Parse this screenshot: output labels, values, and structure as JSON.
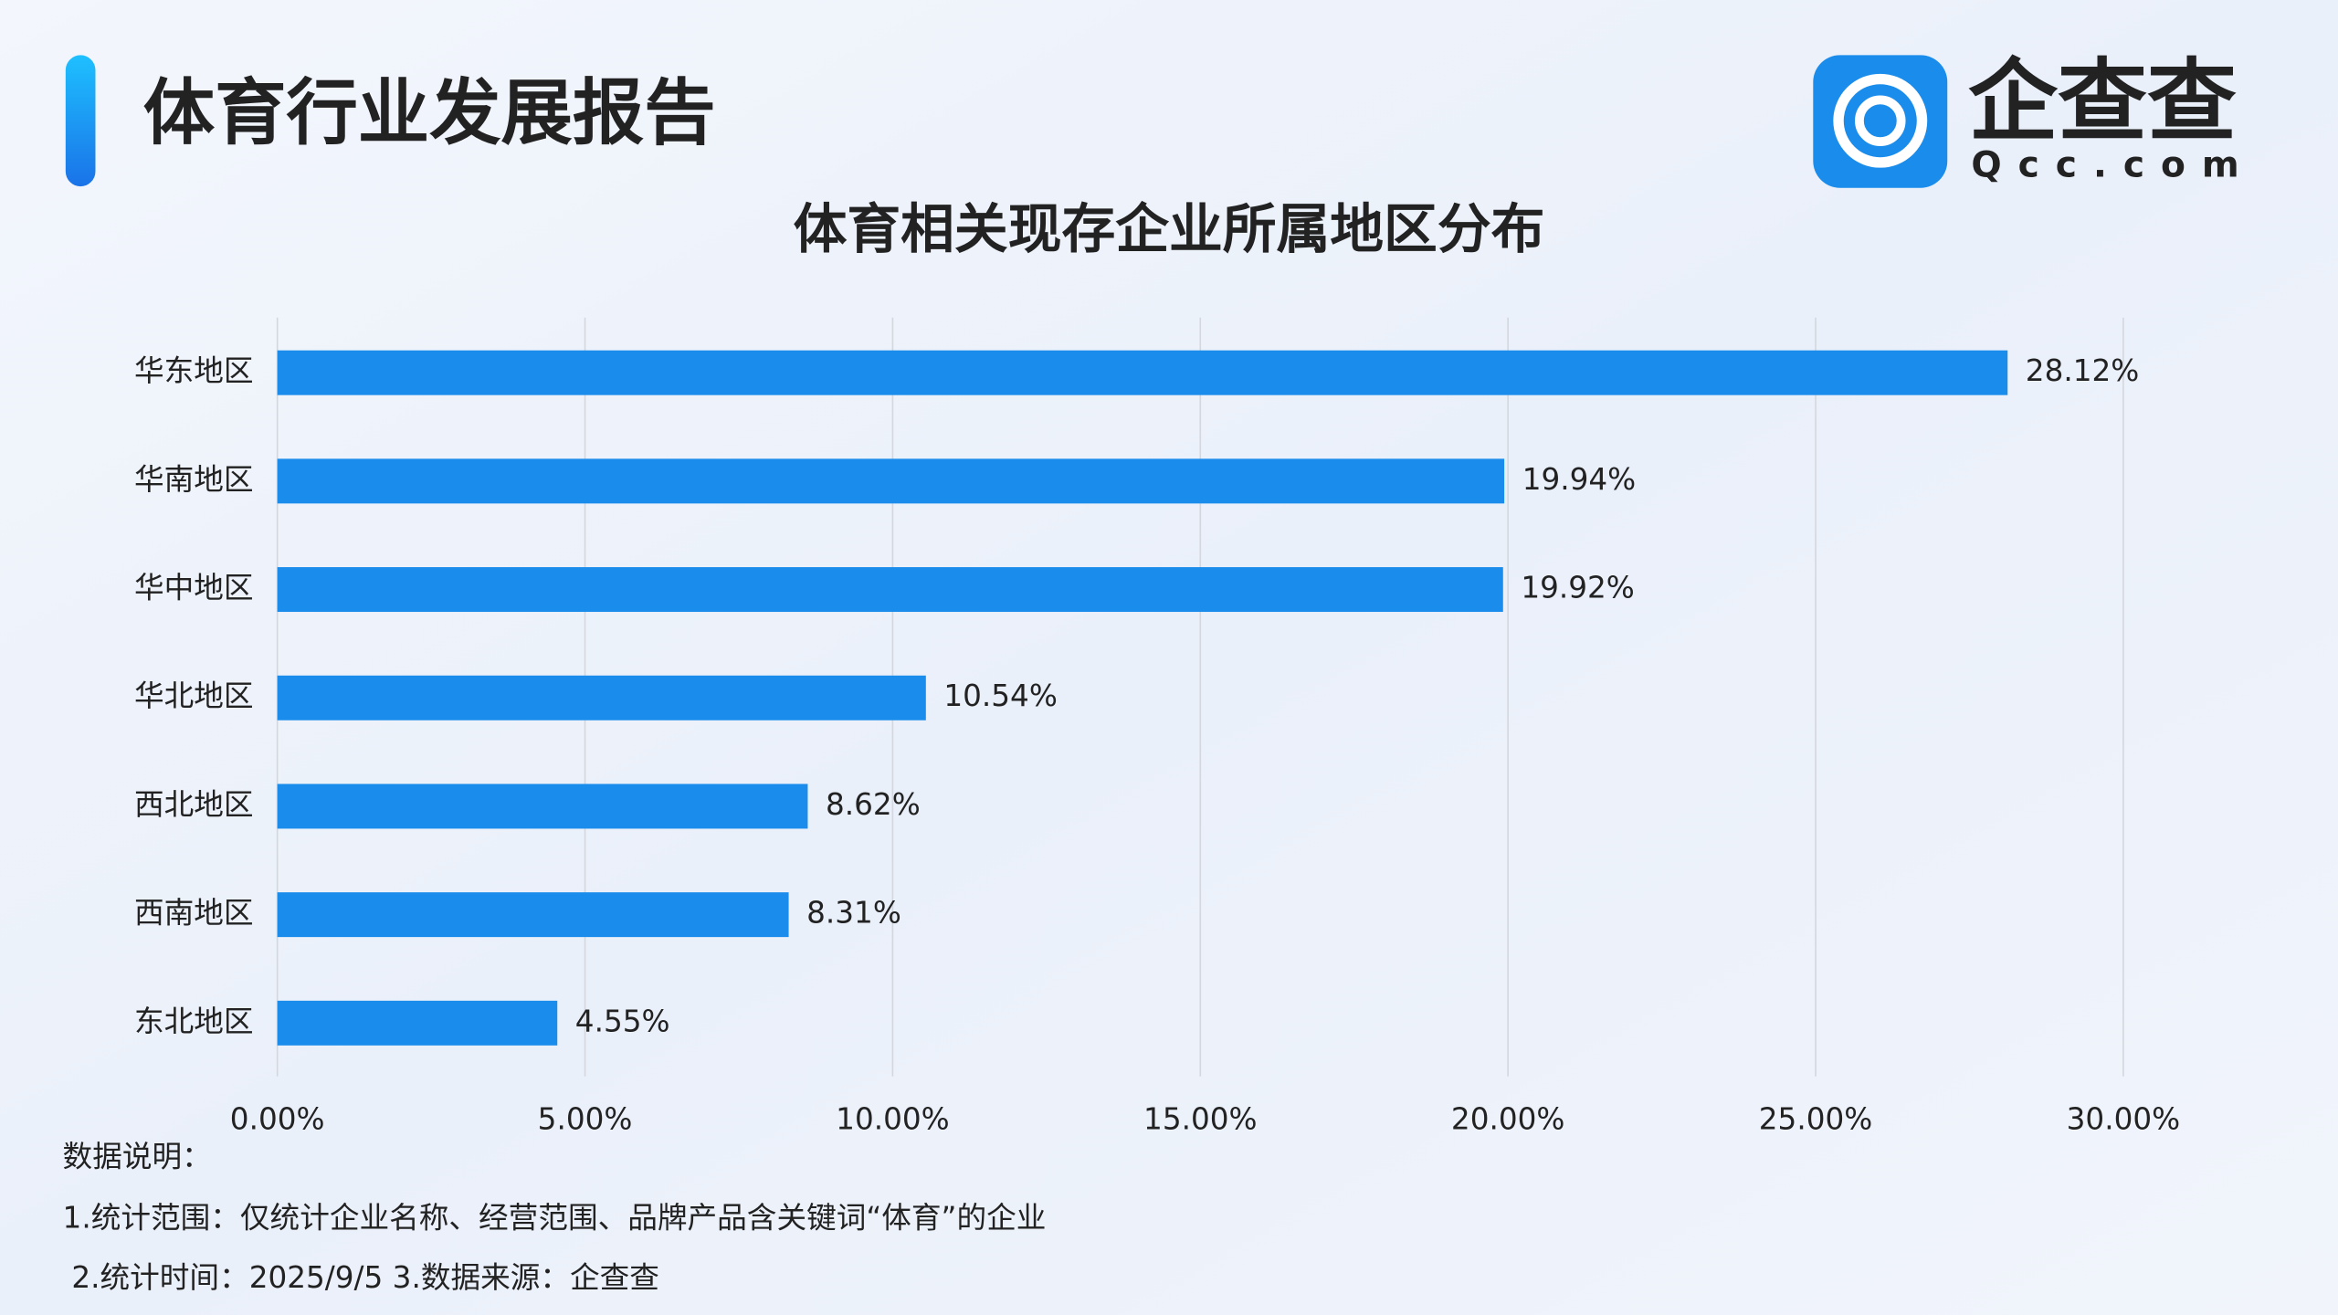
{
  "header": {
    "title": "体育行业发展报告"
  },
  "logo": {
    "name": "企查查",
    "domain": "Qcc.com"
  },
  "chart_data": {
    "type": "hbar",
    "title": "体育相关现存企业所属地区分布",
    "categories": [
      "华东地区",
      "华南地区",
      "华中地区",
      "华北地区",
      "西北地区",
      "西南地区",
      "东北地区"
    ],
    "values": [
      28.12,
      19.94,
      19.92,
      10.54,
      8.62,
      8.31,
      4.55
    ],
    "value_labels": [
      "28.12%",
      "19.94%",
      "19.92%",
      "10.54%",
      "8.62%",
      "8.31%",
      "4.55%"
    ],
    "color": "#1a8ceb",
    "xlim": [
      0,
      30
    ],
    "xticks": [
      {
        "value": 0,
        "label": "0.00%"
      },
      {
        "value": 5,
        "label": "5.00%"
      },
      {
        "value": 10,
        "label": "10.00%"
      },
      {
        "value": 15,
        "label": "15.00%"
      },
      {
        "value": 20,
        "label": "20.00%"
      },
      {
        "value": 25,
        "label": "25.00%"
      },
      {
        "value": 30,
        "label": "30.00%"
      }
    ],
    "grid": true
  },
  "notes": {
    "heading": "数据说明：",
    "lines": [
      "1.统计范围：仅统计企业名称、经营范围、品牌产品含关键词“体育”的企业",
      "2.统计时间：2025/9/5 3.数据来源：企查查"
    ]
  }
}
